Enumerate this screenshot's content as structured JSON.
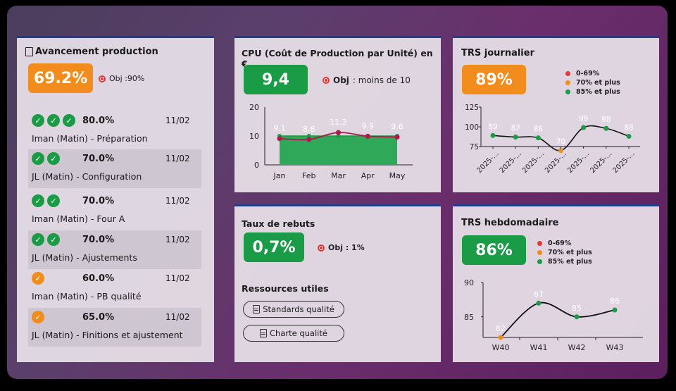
{
  "colors": {
    "orange": "#f28c1c",
    "green": "#1a9b45",
    "red": "#e53935",
    "frame_border": "#1f3f8a"
  },
  "production": {
    "title": "Avancement production",
    "title_icon": "clipboard-icon",
    "kpi": "69.2%",
    "objective": "Obj :90%",
    "tasks": [
      {
        "checks": [
          "green",
          "green",
          "green"
        ],
        "pct": "80.0%",
        "date": "11/02",
        "name": "Iman (Matin) - Préparation",
        "shaded": false
      },
      {
        "checks": [
          "green",
          "green"
        ],
        "pct": "70.0%",
        "date": "11/02",
        "name": "JL (Matin) - Configuration",
        "shaded": true
      },
      {
        "checks": [
          "green",
          "green"
        ],
        "pct": "70.0%",
        "date": "11/02",
        "name": "Iman (Matin) - Four A",
        "shaded": false
      },
      {
        "checks": [
          "green",
          "green"
        ],
        "pct": "70.0%",
        "date": "11/02",
        "name": "JL (Matin) - Ajustements",
        "shaded": true
      },
      {
        "checks": [
          "orange"
        ],
        "pct": "60.0%",
        "date": "11/02",
        "name": "Iman (Matin) - PB qualité",
        "shaded": false
      },
      {
        "checks": [
          "orange"
        ],
        "pct": "65.0%",
        "date": "11/02",
        "name": "JL (Matin) - Finitions et ajustement",
        "shaded": true
      }
    ]
  },
  "cpu": {
    "title": "CPU (Coût de Production par Unité) en €",
    "kpi": "9,4",
    "objective_label": "Obj",
    "objective_text": " : moins de 10"
  },
  "trs_daily": {
    "title": "TRS journalier",
    "kpi": "89%",
    "legend": [
      {
        "label": "0-69%",
        "color": "#e53935"
      },
      {
        "label": "70% et plus",
        "color": "#f28c1c"
      },
      {
        "label": "85% et plus",
        "color": "#1a9b45"
      }
    ]
  },
  "rebuts": {
    "title": "Taux de rebuts",
    "kpi": "0,7%",
    "objective": "Obj : 1%"
  },
  "resources": {
    "title": "Ressources utiles",
    "buttons": [
      "Standards qualité",
      "Charte qualité"
    ]
  },
  "trs_weekly": {
    "title": "TRS hebdomadaire",
    "kpi": "86%",
    "legend": [
      {
        "label": "0-69%",
        "color": "#e53935"
      },
      {
        "label": "70% et plus",
        "color": "#f28c1c"
      },
      {
        "label": "85% et plus",
        "color": "#1a9b45"
      }
    ]
  },
  "chart_data": [
    {
      "id": "cpu",
      "type": "area",
      "categories": [
        "Jan",
        "Feb",
        "Mar",
        "Apr",
        "May"
      ],
      "series": [
        {
          "values": [
            9.1,
            8.8,
            11.2,
            9.9,
            9.6
          ],
          "labels": [
            "9.1",
            "8.8",
            "11.2",
            "9.9",
            "9.6"
          ]
        },
        {
          "values": [
            10,
            10,
            10,
            10,
            10
          ]
        }
      ],
      "ylim": [
        0,
        20
      ],
      "yticks": [
        0,
        10,
        20
      ]
    },
    {
      "id": "trs_daily",
      "type": "line",
      "categories": [
        "2025-...",
        "2025-...",
        "2025-...",
        "2025-...",
        "2025-...",
        "2025-...",
        "2025-..."
      ],
      "values": [
        89,
        87,
        86,
        70,
        99,
        98,
        88
      ],
      "ylim": [
        70,
        125
      ],
      "yticks": [
        75,
        100,
        125
      ]
    },
    {
      "id": "trs_weekly",
      "type": "line",
      "categories": [
        "W40",
        "W41",
        "W42",
        "W43"
      ],
      "values": [
        82,
        87,
        85,
        86
      ],
      "ylim": [
        82,
        90
      ],
      "yticks": [
        85,
        90
      ]
    }
  ]
}
